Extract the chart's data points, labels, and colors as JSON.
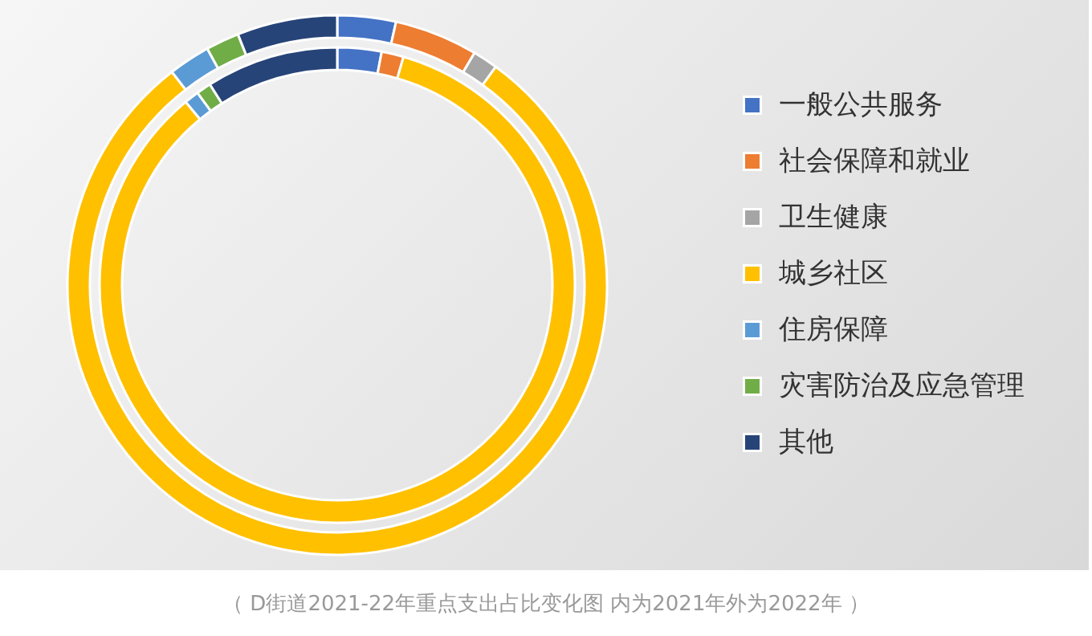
{
  "chart_data": {
    "type": "donut",
    "categories": [
      "一般公共服务",
      "社会保障和就业",
      "卫生健康",
      "城乡社区",
      "住房保障",
      "灾害防治及应急管理",
      "其他"
    ],
    "colors": [
      "#4472c4",
      "#ed7d31",
      "#a5a5a5",
      "#ffc000",
      "#5b9bd5",
      "#70ad47",
      "#264478"
    ],
    "series": [
      {
        "values": [
          3,
          1.5,
          null,
          84.5,
          1,
          1,
          9
        ]
      },
      {
        "values": [
          3.5,
          5,
          1.5,
          79.5,
          2.5,
          2,
          6
        ]
      }
    ],
    "legend": "right",
    "annotations": [
      "（ D街道2021-22年重点支出占比变化图 内为2021年外为2022年 ）"
    ]
  }
}
